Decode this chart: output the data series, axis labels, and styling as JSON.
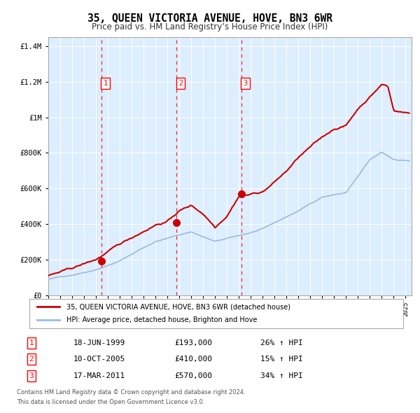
{
  "title": "35, QUEEN VICTORIA AVENUE, HOVE, BN3 6WR",
  "subtitle": "Price paid vs. HM Land Registry’s House Price Index (HPI)",
  "title_fontsize": 10.5,
  "subtitle_fontsize": 8.5,
  "legend_line1": "35, QUEEN VICTORIA AVENUE, HOVE, BN3 6WR (detached house)",
  "legend_line2": "HPI: Average price, detached house, Brighton and Hove",
  "sale_line_color": "#cc0000",
  "hpi_line_color": "#99bbdd",
  "bg_color": "#ddeeff",
  "grid_color": "#ffffff",
  "purchase_dates": [
    1999.46,
    2005.77,
    2011.21
  ],
  "purchase_prices": [
    193000,
    410000,
    570000
  ],
  "purchase_labels": [
    "1",
    "2",
    "3"
  ],
  "purchase_date_strings": [
    "18-JUN-1999",
    "10-OCT-2005",
    "17-MAR-2011"
  ],
  "purchase_price_strings": [
    "£193,000",
    "£410,000",
    "£570,000"
  ],
  "purchase_hpi_strings": [
    "26% ↑ HPI",
    "15% ↑ HPI",
    "34% ↑ HPI"
  ],
  "footer_text1": "Contains HM Land Registry data © Crown copyright and database right 2024.",
  "footer_text2": "This data is licensed under the Open Government Licence v3.0.",
  "ylim": [
    0,
    1450000
  ],
  "yticks": [
    0,
    200000,
    400000,
    600000,
    800000,
    1000000,
    1200000,
    1400000
  ],
  "ytick_labels": [
    "£0",
    "£200K",
    "£400K",
    "£600K",
    "£800K",
    "£1M",
    "£1.2M",
    "£1.4M"
  ],
  "xlim_start": 1995.0,
  "xlim_end": 2025.5,
  "hpi_anchors_x": [
    1995,
    1997,
    1999,
    2001,
    2003,
    2004,
    2007,
    2009,
    2011,
    2013,
    2016,
    2018,
    2020,
    2022,
    2023,
    2024,
    2025.3
  ],
  "hpi_anchors_y": [
    90000,
    115000,
    150000,
    200000,
    275000,
    310000,
    365000,
    310000,
    340000,
    375000,
    475000,
    555000,
    580000,
    760000,
    800000,
    760000,
    755000
  ],
  "house_anchors_x": [
    1995,
    1997,
    1999,
    2000,
    2002,
    2004,
    2005,
    2006,
    2007,
    2008,
    2009,
    2010,
    2011,
    2012,
    2013,
    2014,
    2015,
    2016,
    2017,
    2018,
    2019,
    2020,
    2021,
    2022,
    2023,
    2023.5,
    2024,
    2025.3
  ],
  "house_anchors_y": [
    110000,
    145000,
    193000,
    235000,
    310000,
    390000,
    410000,
    470000,
    500000,
    455000,
    385000,
    455000,
    570000,
    580000,
    595000,
    650000,
    710000,
    785000,
    840000,
    890000,
    940000,
    960000,
    1055000,
    1125000,
    1195000,
    1185000,
    1050000,
    1035000
  ]
}
